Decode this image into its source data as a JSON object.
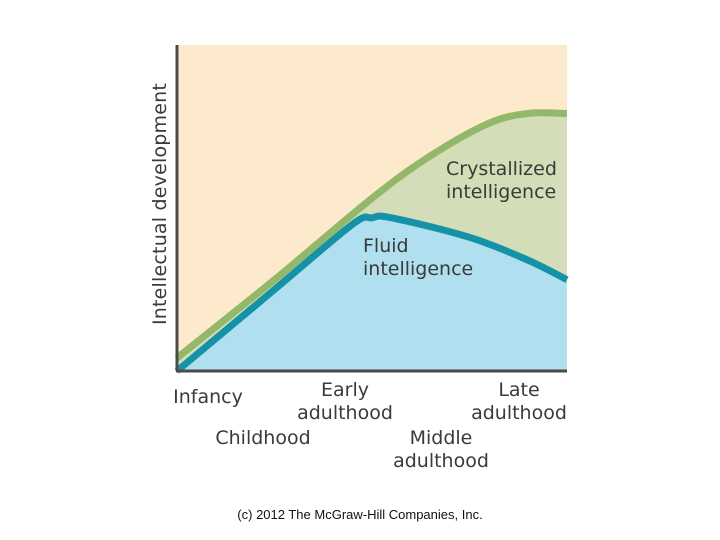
{
  "chart_data": {
    "type": "area",
    "ylabel": "Intellectual development",
    "xlabel": "",
    "tick_labels": [
      {
        "line1": "Infancy",
        "line2": ""
      },
      {
        "line1": "Childhood",
        "line2": ""
      },
      {
        "line1": "Early",
        "line2": "adulthood"
      },
      {
        "line1": "Middle",
        "line2": "adulthood"
      },
      {
        "line1": "Late",
        "line2": "adulthood"
      }
    ],
    "x": [
      0,
      0.25,
      0.5,
      0.75,
      1.0
    ],
    "ylim": [
      0,
      1
    ],
    "grid": false,
    "legend": "none",
    "series": [
      {
        "name": "Crystallized intelligence",
        "line1": "Crystallized",
        "line2": "intelligence",
        "x": [
          0,
          0.25,
          0.5,
          0.65,
          0.8,
          0.9,
          1.0
        ],
        "values": [
          0.04,
          0.28,
          0.53,
          0.66,
          0.76,
          0.79,
          0.79
        ],
        "color": "#94b86a",
        "fill": "#d3ddb8"
      },
      {
        "name": "Fluid intelligence",
        "line1": "Fluid",
        "line2": "intelligence",
        "x": [
          0,
          0.25,
          0.45,
          0.5,
          0.55,
          0.75,
          0.9,
          1.0
        ],
        "values": [
          0.0,
          0.25,
          0.45,
          0.47,
          0.47,
          0.41,
          0.34,
          0.28
        ],
        "color": "#1692a8",
        "fill": "#b0e0ef"
      }
    ],
    "background": "#fde9cb"
  },
  "footer": {
    "copyright": "(c) 2012 The McGraw-Hill Companies, Inc."
  }
}
